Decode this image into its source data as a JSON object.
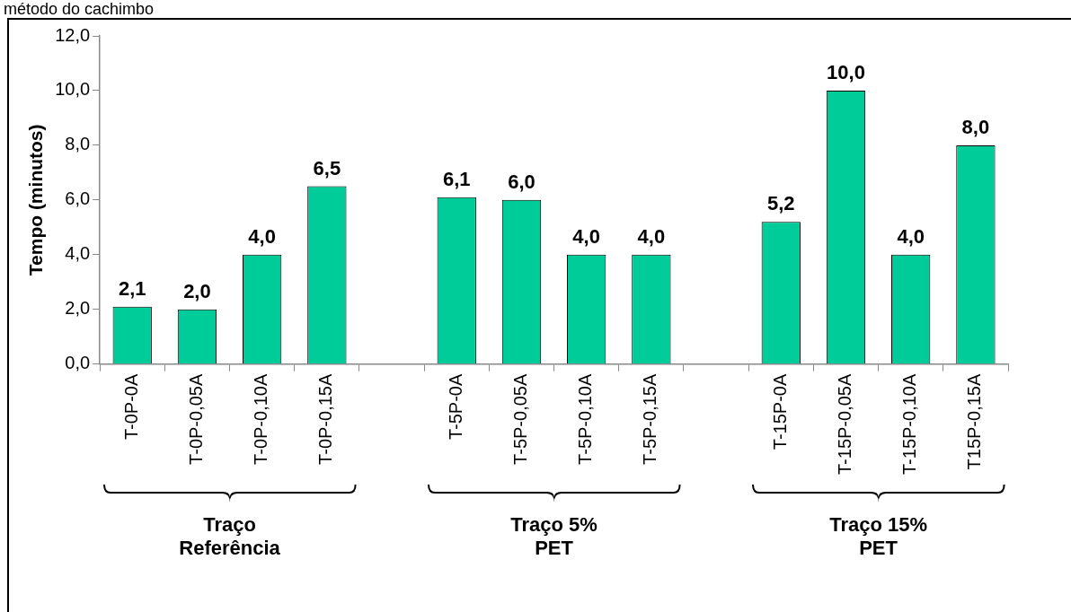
{
  "chart_data": {
    "type": "bar",
    "title": "método do cachimbo",
    "ylabel": "Tempo (minutos)",
    "categories": [
      "T-0P-0A",
      "T-0P-0,05A",
      "T-0P-0,10A",
      "T-0P-0,15A",
      null,
      "T-5P-0A",
      "T-5P-0,05A",
      "T-5P-0,10A",
      "T-5P-0,15A",
      null,
      "T-15P-0A",
      "T-15P-0,05A",
      "T-15P-0,10A",
      "T15P-0,15A"
    ],
    "values": [
      2.1,
      2.0,
      4.0,
      6.5,
      null,
      6.1,
      6.0,
      4.0,
      4.0,
      null,
      5.2,
      10.0,
      4.0,
      8.0
    ],
    "value_labels": [
      "2,1",
      "2,0",
      "4,0",
      "6,5",
      null,
      "6,1",
      "6,0",
      "4,0",
      "4,0",
      null,
      "5,2",
      "10,0",
      "4,0",
      "8,0"
    ],
    "color": "#00cc99",
    "ylim": [
      0,
      12
    ],
    "yticks": [
      {
        "value": 0,
        "label": "0,0"
      },
      {
        "value": 2,
        "label": "2,0"
      },
      {
        "value": 4,
        "label": "4,0"
      },
      {
        "value": 6,
        "label": "6,0"
      },
      {
        "value": 8,
        "label": "8,0"
      },
      {
        "value": 10,
        "label": "10,0"
      },
      {
        "value": 12,
        "label": "12,0"
      }
    ],
    "grid": false,
    "legend": false,
    "annotations": [
      "Traço Referência",
      "Traço 5% PET",
      "Traço 15% PET"
    ]
  }
}
